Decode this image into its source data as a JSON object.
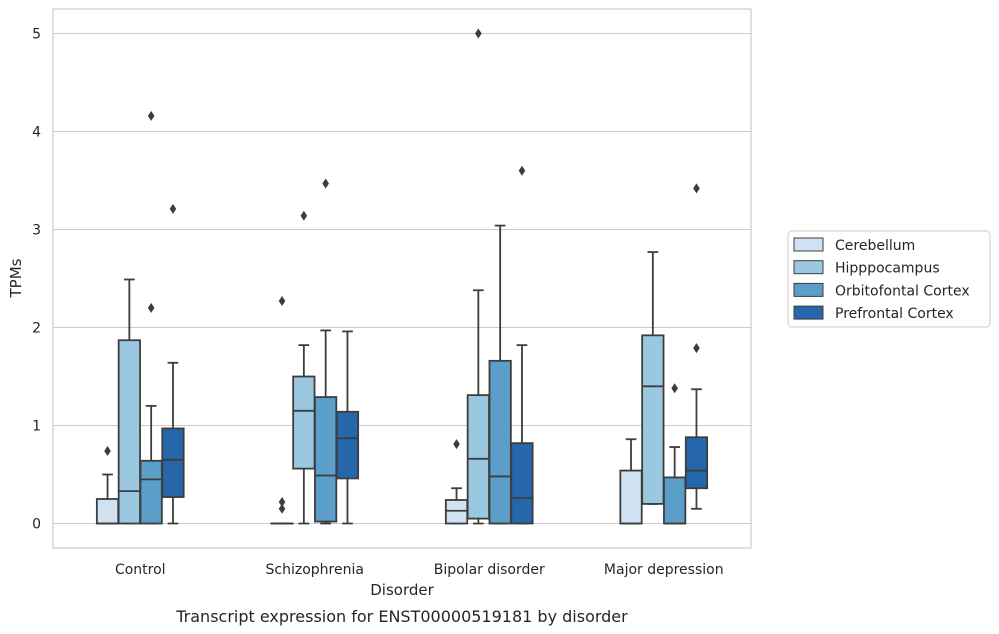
{
  "caption": "Transcript expression for ENST00000519181 by disorder",
  "chart_data": {
    "type": "boxplot",
    "title": "",
    "xlabel": "Disorder",
    "ylabel": "TPMs",
    "ylim": [
      -0.25,
      5.25
    ],
    "yticks": [
      0,
      1,
      2,
      3,
      4,
      5
    ],
    "grid": "horizontal",
    "legend_position": "right",
    "categories": [
      "Control",
      "Schizophrenia",
      "Bipolar disorder",
      "Major depression"
    ],
    "series": [
      {
        "name": "Cerebellum",
        "color": "#d0e2f2",
        "boxes": [
          {
            "whislo": 0,
            "q1": 0,
            "med": 0,
            "q3": 0.25,
            "whishi": 0.5,
            "fliers": [
              0.74
            ]
          },
          {
            "whislo": 0,
            "q1": 0,
            "med": 0,
            "q3": 0,
            "whishi": 0,
            "fliers": [
              0.15,
              0.22,
              2.27
            ]
          },
          {
            "whislo": 0,
            "q1": 0,
            "med": 0.13,
            "q3": 0.24,
            "whishi": 0.36,
            "fliers": [
              0.81
            ]
          },
          {
            "whislo": 0,
            "q1": 0,
            "med": 0,
            "q3": 0.54,
            "whishi": 0.86,
            "fliers": []
          }
        ]
      },
      {
        "name": "Hipppocampus",
        "color": "#9ac8e0",
        "boxes": [
          {
            "whislo": 0,
            "q1": 0,
            "med": 0.33,
            "q3": 1.87,
            "whishi": 2.49,
            "fliers": []
          },
          {
            "whislo": 0,
            "q1": 0.56,
            "med": 1.15,
            "q3": 1.5,
            "whishi": 1.82,
            "fliers": [
              3.14
            ]
          },
          {
            "whislo": 0,
            "q1": 0.05,
            "med": 0.66,
            "q3": 1.31,
            "whishi": 2.38,
            "fliers": [
              5.0
            ]
          },
          {
            "whislo": 0.2,
            "q1": 0.2,
            "med": 1.4,
            "q3": 1.92,
            "whishi": 2.77,
            "fliers": []
          }
        ]
      },
      {
        "name": "Orbitofontal Cortex",
        "color": "#5a9ec9",
        "boxes": [
          {
            "whislo": 0,
            "q1": 0,
            "med": 0.45,
            "q3": 0.64,
            "whishi": 1.2,
            "fliers": [
              2.2,
              4.16
            ]
          },
          {
            "whislo": 0,
            "q1": 0.02,
            "med": 0.49,
            "q3": 1.29,
            "whishi": 1.97,
            "fliers": [
              3.47
            ]
          },
          {
            "whislo": 0,
            "q1": 0,
            "med": 0.48,
            "q3": 1.66,
            "whishi": 3.04,
            "fliers": []
          },
          {
            "whislo": 0,
            "q1": 0,
            "med": 0,
            "q3": 0.47,
            "whishi": 0.78,
            "fliers": [
              1.38
            ]
          }
        ]
      },
      {
        "name": "Prefrontal Cortex",
        "color": "#2666ab",
        "boxes": [
          {
            "whislo": 0,
            "q1": 0.27,
            "med": 0.65,
            "q3": 0.97,
            "whishi": 1.64,
            "fliers": [
              3.21
            ]
          },
          {
            "whislo": 0,
            "q1": 0.46,
            "med": 0.87,
            "q3": 1.14,
            "whishi": 1.96,
            "fliers": []
          },
          {
            "whislo": 0,
            "q1": 0,
            "med": 0.26,
            "q3": 0.82,
            "whishi": 1.82,
            "fliers": [
              3.6
            ]
          },
          {
            "whislo": 0.15,
            "q1": 0.36,
            "med": 0.54,
            "q3": 0.88,
            "whishi": 1.37,
            "fliers": [
              1.79,
              3.42
            ]
          }
        ]
      }
    ]
  }
}
